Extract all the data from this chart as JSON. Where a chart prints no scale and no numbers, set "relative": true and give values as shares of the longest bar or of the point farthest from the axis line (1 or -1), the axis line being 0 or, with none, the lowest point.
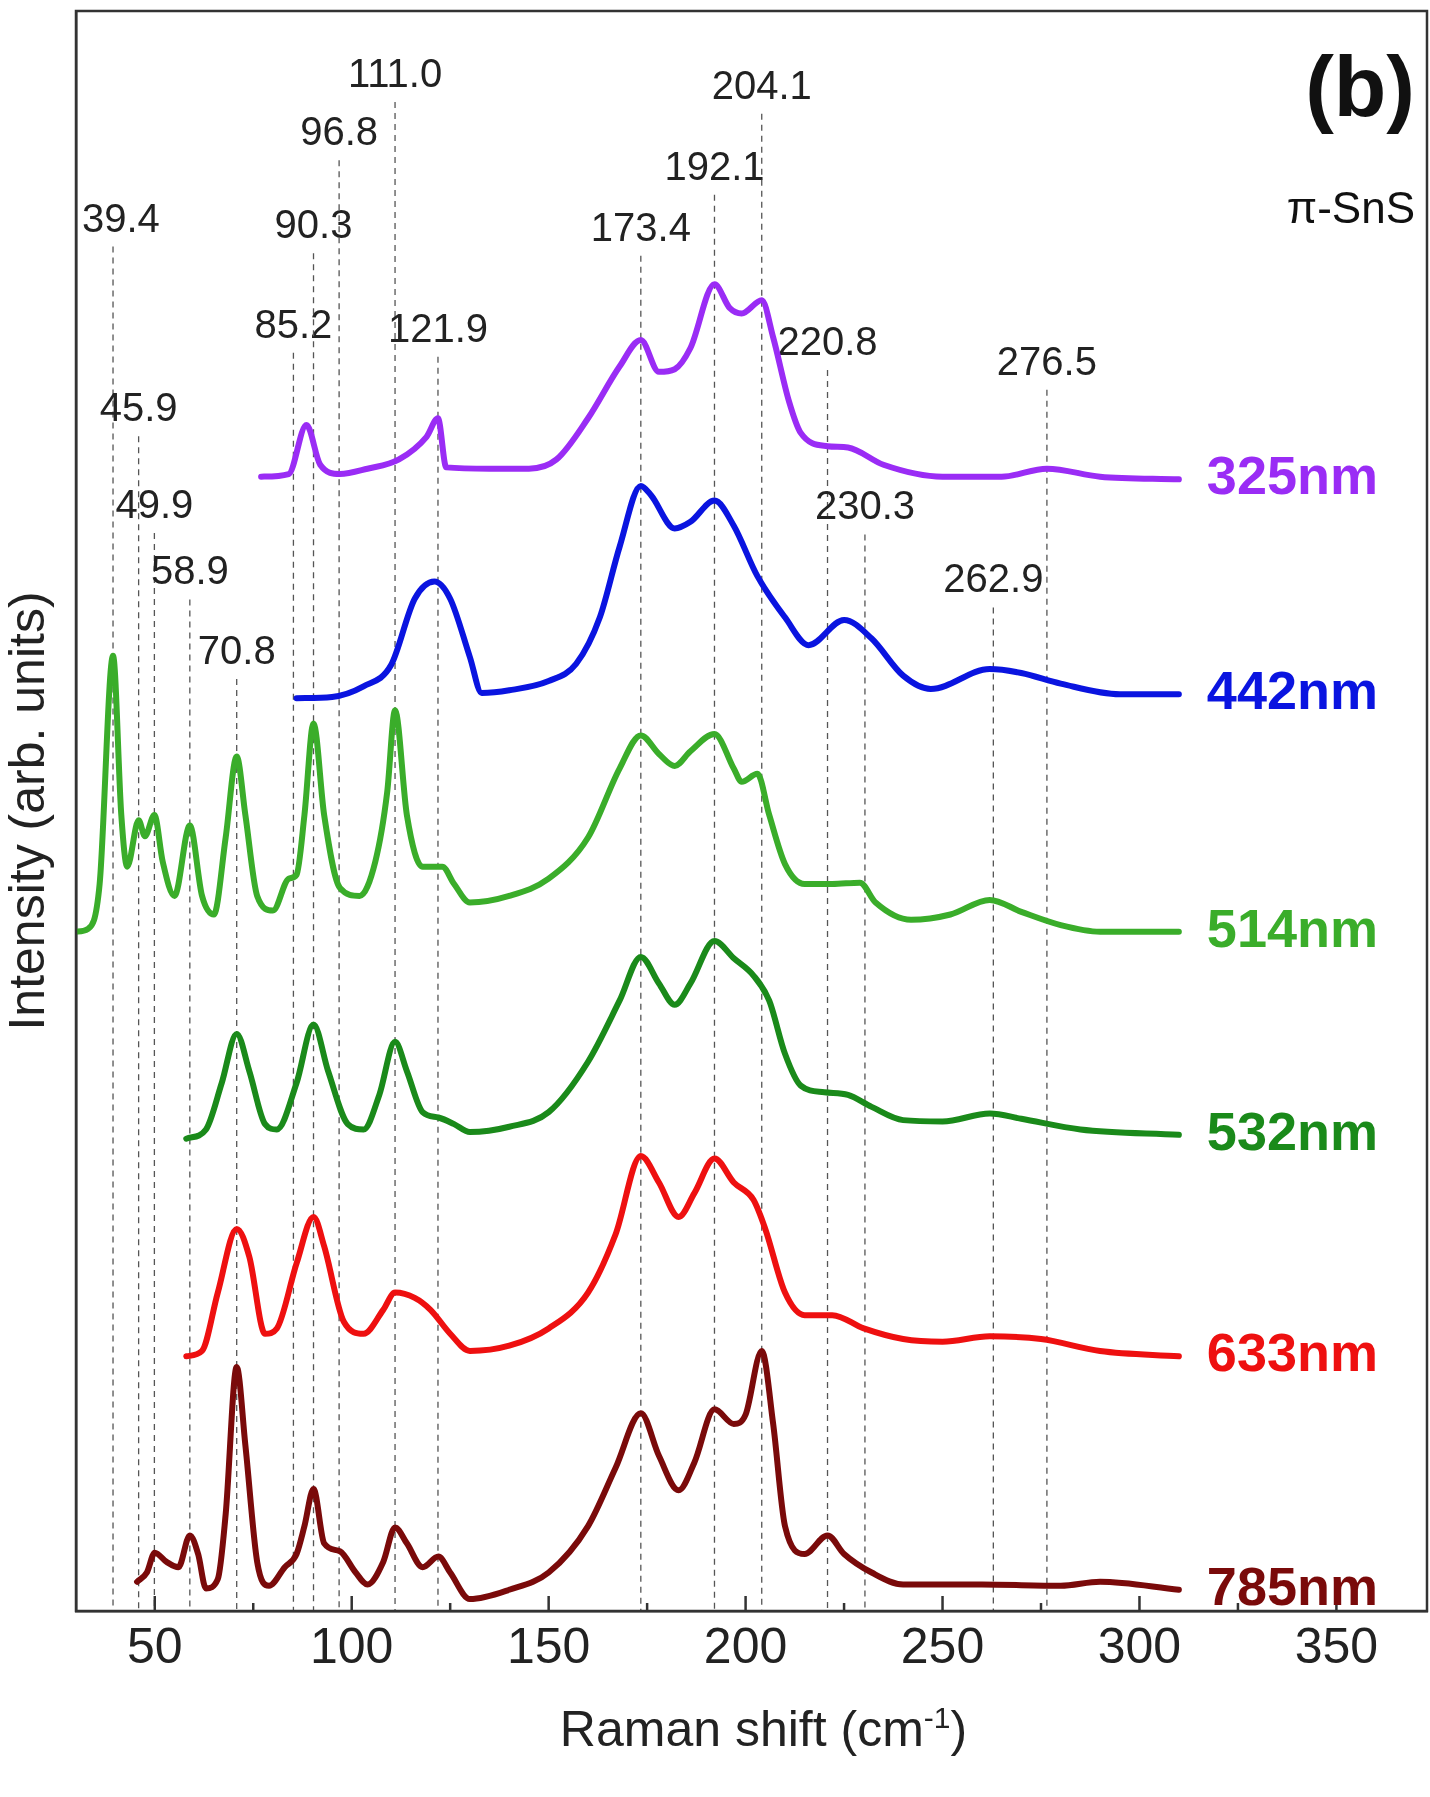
{
  "chart_data": {
    "type": "line",
    "title": "(b)",
    "subtitle": "π-SnS",
    "xlabel": "Raman shift (cm$^{-1}$)",
    "ylabel": "Intensity (arb. units)",
    "relative": true,
    "legend": false,
    "marker": "none",
    "grid": false,
    "xlim": [
      30,
      373
    ],
    "xticks": [
      50,
      {
        "value": 75,
        "label": null
      },
      100,
      {
        "value": 125,
        "label": null
      },
      150,
      {
        "value": 175,
        "label": null
      },
      200,
      {
        "value": 225,
        "label": null
      },
      250,
      {
        "value": 275,
        "label": null
      },
      300,
      {
        "value": 325,
        "label": null
      },
      350
    ],
    "series": [
      {
        "name": "325nm",
        "color": "#9a2cf5",
        "x": [
          77,
          84,
          88.5,
          92,
          97,
          104,
          112,
          119,
          121.9,
          124,
          135,
          145,
          152,
          160,
          168,
          173.4,
          178,
          182,
          186,
          192.1,
          196,
          199,
          204.1,
          207,
          211,
          214,
          220.8,
          226,
          235,
          250,
          265,
          276.5,
          290,
          310
        ],
        "values": [
          0.855,
          0.857,
          0.894,
          0.864,
          0.857,
          0.861,
          0.868,
          0.885,
          0.899,
          0.862,
          0.861,
          0.861,
          0.868,
          0.899,
          0.938,
          0.958,
          0.934,
          0.936,
          0.952,
          1,
          0.982,
          0.978,
          0.988,
          0.96,
          0.912,
          0.888,
          0.878,
          0.877,
          0.864,
          0.855,
          0.855,
          0.861,
          0.855,
          0.853
        ]
      },
      {
        "name": "442nm",
        "color": "#0a14e0",
        "x": [
          86,
          95,
          103,
          110,
          116,
          121,
          125,
          130,
          133,
          140,
          150,
          157,
          163,
          168,
          173.4,
          176,
          182,
          186,
          192.1,
          197,
          203,
          210,
          216,
          225,
          232,
          240,
          247,
          262,
          270,
          280,
          295,
          310
        ],
        "values": [
          0.688,
          0.689,
          0.697,
          0.713,
          0.763,
          0.776,
          0.763,
          0.719,
          0.692,
          0.694,
          0.701,
          0.714,
          0.749,
          0.802,
          0.848,
          0.841,
          0.816,
          0.821,
          0.837,
          0.818,
          0.78,
          0.749,
          0.728,
          0.747,
          0.733,
          0.705,
          0.695,
          0.71,
          0.707,
          0.699,
          0.691,
          0.691
        ]
      },
      {
        "name": "514nm",
        "color": "#3aad2a",
        "x": [
          30,
          33,
          36,
          39.4,
          41.5,
          43,
          45.9,
          47.5,
          49.9,
          52,
          55,
          58.9,
          62,
          65,
          68,
          70.8,
          73,
          76,
          80,
          84,
          86,
          88,
          90.3,
          93,
          97,
          102,
          106,
          109,
          111,
          114,
          118,
          123,
          126,
          130,
          140,
          150,
          160,
          168,
          173.4,
          178,
          182,
          186,
          192.1,
          197,
          199,
          203,
          206,
          210,
          215,
          222,
          229,
          233,
          242,
          252,
          262,
          270,
          280,
          290,
          310
        ],
        "values": [
          0.512,
          0.514,
          0.548,
          0.72,
          0.6,
          0.561,
          0.596,
          0.584,
          0.6,
          0.565,
          0.539,
          0.592,
          0.539,
          0.525,
          0.583,
          0.644,
          0.6,
          0.539,
          0.528,
          0.552,
          0.555,
          0.6,
          0.669,
          0.6,
          0.545,
          0.539,
          0.565,
          0.617,
          0.679,
          0.6,
          0.561,
          0.561,
          0.548,
          0.534,
          0.539,
          0.552,
          0.583,
          0.635,
          0.66,
          0.646,
          0.637,
          0.648,
          0.661,
          0.635,
          0.625,
          0.631,
          0.6,
          0.563,
          0.548,
          0.548,
          0.549,
          0.534,
          0.521,
          0.525,
          0.536,
          0.527,
          0.517,
          0.512,
          0.512
        ]
      },
      {
        "name": "532nm",
        "color": "#1a8a1a",
        "x": [
          58,
          63,
          67,
          70.8,
          74,
          78,
          81,
          86,
          90.3,
          94,
          99,
          103,
          107,
          111,
          114,
          118,
          122,
          126,
          130,
          140,
          150,
          160,
          168,
          173.4,
          178,
          182,
          186,
          192.1,
          197,
          202,
          206,
          210,
          214,
          220,
          226,
          232,
          240,
          250,
          262,
          270,
          285,
          310
        ],
        "values": [
          0.356,
          0.363,
          0.398,
          0.435,
          0.407,
          0.367,
          0.363,
          0.398,
          0.442,
          0.407,
          0.367,
          0.363,
          0.389,
          0.429,
          0.407,
          0.376,
          0.372,
          0.367,
          0.361,
          0.365,
          0.376,
          0.414,
          0.46,
          0.493,
          0.473,
          0.457,
          0.473,
          0.505,
          0.492,
          0.479,
          0.46,
          0.42,
          0.396,
          0.391,
          0.389,
          0.38,
          0.37,
          0.369,
          0.375,
          0.371,
          0.363,
          0.359
        ]
      },
      {
        "name": "633nm",
        "color": "#ee1010",
        "x": [
          58,
          62,
          66,
          70.8,
          74,
          78,
          81,
          86,
          90.3,
          93,
          98,
          103,
          108,
          111,
          116,
          120,
          125,
          130,
          140,
          150,
          160,
          167,
          173.4,
          178,
          183,
          187,
          192.1,
          197,
          202,
          205,
          210,
          215,
          222,
          230,
          240,
          250,
          262,
          275,
          290,
          310
        ],
        "values": [
          0.192,
          0.196,
          0.24,
          0.288,
          0.267,
          0.209,
          0.213,
          0.262,
          0.297,
          0.275,
          0.218,
          0.209,
          0.227,
          0.24,
          0.236,
          0.227,
          0.209,
          0.196,
          0.2,
          0.213,
          0.24,
          0.284,
          0.343,
          0.323,
          0.297,
          0.315,
          0.341,
          0.323,
          0.31,
          0.288,
          0.24,
          0.223,
          0.223,
          0.213,
          0.205,
          0.203,
          0.207,
          0.205,
          0.196,
          0.192
        ]
      },
      {
        "name": "785nm",
        "color": "#7a0a0a",
        "x": [
          45.5,
          48,
          50,
          53,
          56,
          58.9,
          61,
          63,
          66,
          68,
          70.8,
          73,
          76,
          79,
          83,
          86,
          88,
          90.3,
          93,
          97,
          101,
          104,
          108,
          111,
          114,
          118,
          122,
          125,
          130,
          140,
          150,
          160,
          167,
          173.4,
          178,
          183,
          187,
          192.1,
          197,
          200,
          204.1,
          207,
          210,
          215,
          220.8,
          225,
          232,
          240,
          260,
          280,
          290,
          310
        ],
        "values": [
          0.022,
          0.029,
          0.044,
          0.037,
          0.033,
          0.057,
          0.043,
          0.017,
          0.024,
          0.073,
          0.184,
          0.125,
          0.037,
          0.019,
          0.033,
          0.043,
          0.064,
          0.092,
          0.051,
          0.045,
          0.029,
          0.02,
          0.037,
          0.063,
          0.051,
          0.033,
          0.041,
          0.029,
          0.009,
          0.016,
          0.029,
          0.064,
          0.108,
          0.149,
          0.117,
          0.091,
          0.112,
          0.152,
          0.141,
          0.148,
          0.196,
          0.141,
          0.064,
          0.043,
          0.057,
          0.043,
          0.029,
          0.02,
          0.02,
          0.019,
          0.022,
          0.016
        ]
      }
    ],
    "ref_lines": [
      {
        "axis": "x",
        "value": 39.4,
        "label": "39.4",
        "color": "#555555",
        "line_style": "dashed"
      },
      {
        "axis": "x",
        "value": 45.9,
        "label": "45.9",
        "color": "#555555",
        "line_style": "dashed"
      },
      {
        "axis": "x",
        "value": 49.9,
        "label": "49.9",
        "color": "#555555",
        "line_style": "dashed"
      },
      {
        "axis": "x",
        "value": 58.9,
        "label": "58.9",
        "color": "#555555",
        "line_style": "dashed"
      },
      {
        "axis": "x",
        "value": 70.8,
        "label": "70.8",
        "color": "#555555",
        "line_style": "dashed"
      },
      {
        "axis": "x",
        "value": 85.2,
        "label": "85.2",
        "color": "#555555",
        "line_style": "dashed"
      },
      {
        "axis": "x",
        "value": 90.3,
        "label": "90.3",
        "color": "#555555",
        "line_style": "dashed"
      },
      {
        "axis": "x",
        "value": 96.8,
        "label": "96.8",
        "color": "#555555",
        "line_style": "dashed"
      },
      {
        "axis": "x",
        "value": 111.0,
        "label": "111.0",
        "color": "#555555",
        "line_style": "dashed"
      },
      {
        "axis": "x",
        "value": 121.9,
        "label": "121.9",
        "color": "#555555",
        "line_style": "dashed"
      },
      {
        "axis": "x",
        "value": 173.4,
        "label": "173.4",
        "color": "#555555",
        "line_style": "dashed"
      },
      {
        "axis": "x",
        "value": 192.1,
        "label": "192.1",
        "color": "#555555",
        "line_style": "dashed"
      },
      {
        "axis": "x",
        "value": 204.1,
        "label": "204.1",
        "color": "#555555",
        "line_style": "dashed"
      },
      {
        "axis": "x",
        "value": 220.8,
        "label": "220.8",
        "color": "#555555",
        "line_style": "dashed"
      },
      {
        "axis": "x",
        "value": 230.3,
        "label": "230.3",
        "color": "#555555",
        "line_style": "dashed"
      },
      {
        "axis": "x",
        "value": 262.9,
        "label": "262.9",
        "color": "#555555",
        "line_style": "dashed"
      },
      {
        "axis": "x",
        "value": 276.5,
        "label": "276.5",
        "color": "#555555",
        "line_style": "dashed"
      }
    ]
  }
}
